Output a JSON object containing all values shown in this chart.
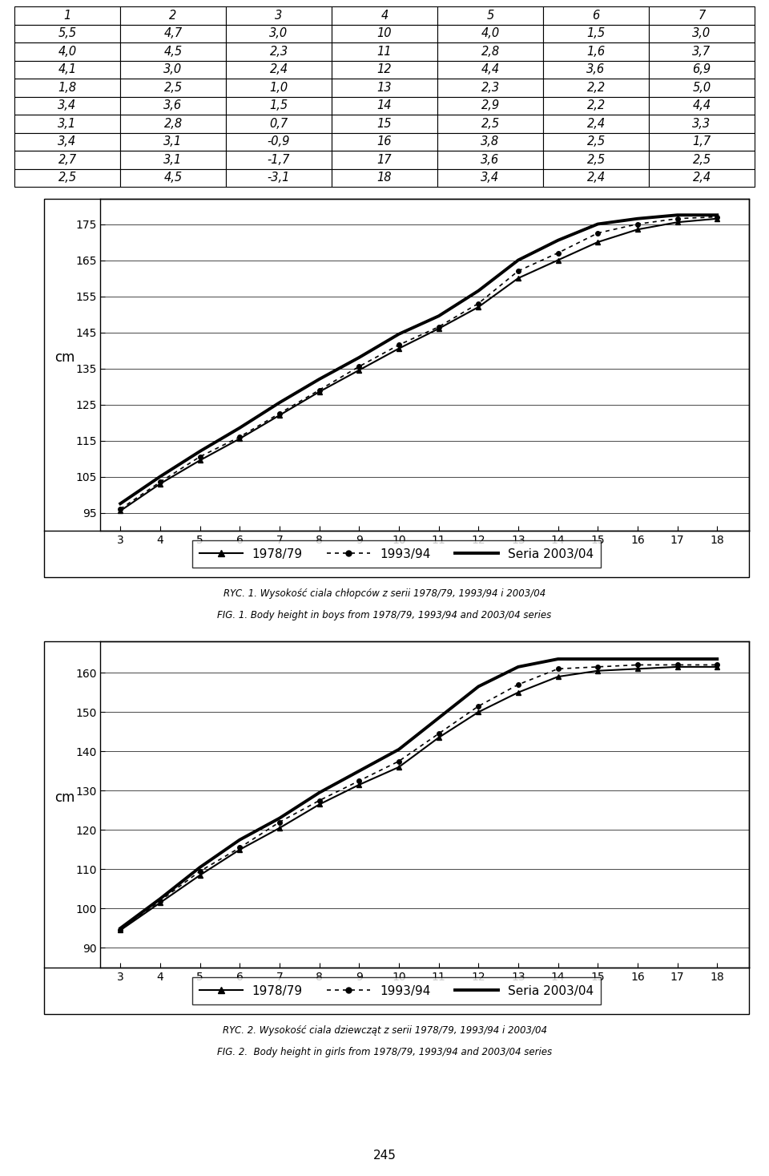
{
  "table": {
    "headers": [
      "1",
      "2",
      "3",
      "4",
      "5",
      "6",
      "7"
    ],
    "rows": [
      [
        5.5,
        4.7,
        3.0,
        10,
        4.0,
        1.5,
        3.0
      ],
      [
        4.0,
        4.5,
        2.3,
        11,
        2.8,
        1.6,
        3.7
      ],
      [
        4.1,
        3.0,
        2.4,
        12,
        4.4,
        3.6,
        6.9
      ],
      [
        1.8,
        2.5,
        1.0,
        13,
        2.3,
        2.2,
        5.0
      ],
      [
        3.4,
        3.6,
        1.5,
        14,
        2.9,
        2.2,
        4.4
      ],
      [
        3.1,
        2.8,
        0.7,
        15,
        2.5,
        2.4,
        3.3
      ],
      [
        3.4,
        3.1,
        -0.9,
        16,
        3.8,
        2.5,
        1.7
      ],
      [
        2.7,
        3.1,
        -1.7,
        17,
        3.6,
        2.5,
        2.5
      ],
      [
        2.5,
        4.5,
        -3.1,
        18,
        3.4,
        2.4,
        2.4
      ]
    ]
  },
  "ages": [
    3,
    4,
    5,
    6,
    7,
    8,
    9,
    10,
    11,
    12,
    13,
    14,
    15,
    16,
    17,
    18
  ],
  "boys": {
    "series_7879": [
      95.5,
      103.0,
      109.5,
      115.5,
      122.0,
      128.5,
      134.5,
      140.5,
      146.0,
      152.0,
      160.0,
      165.0,
      170.0,
      173.5,
      175.5,
      176.5
    ],
    "series_9394": [
      96.0,
      103.5,
      110.5,
      116.0,
      122.5,
      129.0,
      135.5,
      141.5,
      146.5,
      153.0,
      162.0,
      167.0,
      172.5,
      175.0,
      176.5,
      177.0
    ],
    "series_0304": [
      97.5,
      105.0,
      112.0,
      118.5,
      125.5,
      132.0,
      138.0,
      144.5,
      149.5,
      156.5,
      165.0,
      170.5,
      175.0,
      176.5,
      177.5,
      177.5
    ]
  },
  "girls": {
    "series_7879": [
      94.5,
      101.5,
      108.5,
      115.0,
      120.5,
      126.5,
      131.5,
      136.0,
      143.5,
      150.0,
      155.0,
      159.0,
      160.5,
      161.0,
      161.5,
      161.5
    ],
    "series_9394": [
      94.5,
      102.0,
      109.5,
      115.5,
      122.0,
      127.5,
      132.5,
      137.5,
      144.5,
      151.5,
      157.0,
      161.0,
      161.5,
      162.0,
      162.0,
      162.0
    ],
    "series_0304": [
      95.0,
      102.5,
      110.5,
      117.5,
      123.0,
      129.5,
      135.0,
      140.5,
      148.5,
      156.5,
      161.5,
      163.5,
      163.5,
      163.5,
      163.5,
      163.5
    ]
  },
  "chart1_caption_line1": "RYC. 1. Wysokość ciala chłopców z serii 1978/79, 1993/94 i 2003/04",
  "chart1_caption_line2": "FIG. 1. Body height in boys from 1978/79, 1993/94 and 2003/04 series",
  "chart2_caption_line1": "RYC. 2. Wysokość ciala dziewcząt z serii 1978/79, 1993/94 i 2003/04",
  "chart2_caption_line2": "FIG. 2.  Body height in girls from 1978/79, 1993/94 and 2003/04 series",
  "ylabel": "cm",
  "boys_ylim": [
    90,
    182
  ],
  "boys_yticks": [
    95,
    105,
    115,
    125,
    135,
    145,
    155,
    165,
    175
  ],
  "girls_ylim": [
    85,
    168
  ],
  "girls_yticks": [
    90,
    100,
    110,
    120,
    130,
    140,
    150,
    160
  ],
  "xlim": [
    2.5,
    18.8
  ],
  "xticks": [
    3,
    4,
    5,
    6,
    7,
    8,
    9,
    10,
    11,
    12,
    13,
    14,
    15,
    16,
    17,
    18
  ],
  "page_number": "245",
  "background_color": "#ffffff"
}
